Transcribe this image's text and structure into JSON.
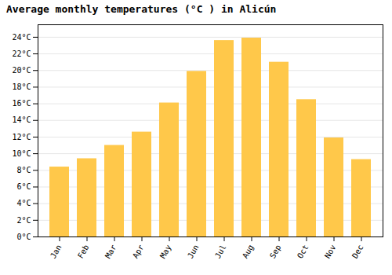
{
  "chart_data": {
    "type": "bar",
    "title": "Average monthly temperatures (°C ) in Alicún",
    "categories": [
      "Jan",
      "Feb",
      "Mar",
      "Apr",
      "May",
      "Jun",
      "Jul",
      "Aug",
      "Sep",
      "Oct",
      "Nov",
      "Dec"
    ],
    "values": [
      8.4,
      9.4,
      11.0,
      12.6,
      16.1,
      19.9,
      23.6,
      23.9,
      21.0,
      16.5,
      11.9,
      9.3
    ],
    "color": "#FFC84A",
    "ylim": [
      0,
      25.5
    ],
    "yticks": [
      {
        "value": 0,
        "label": "0°C"
      },
      {
        "value": 2,
        "label": "2°C"
      },
      {
        "value": 4,
        "label": "4°C"
      },
      {
        "value": 6,
        "label": "6°C"
      },
      {
        "value": 8,
        "label": "8°C"
      },
      {
        "value": 10,
        "label": "10°C"
      },
      {
        "value": 12,
        "label": "12°C"
      },
      {
        "value": 14,
        "label": "14°C"
      },
      {
        "value": 16,
        "label": "16°C"
      },
      {
        "value": 18,
        "label": "18°C"
      },
      {
        "value": 20,
        "label": "20°C"
      },
      {
        "value": 22,
        "label": "22°C"
      },
      {
        "value": 24,
        "label": "24°C"
      }
    ],
    "grid": true
  }
}
